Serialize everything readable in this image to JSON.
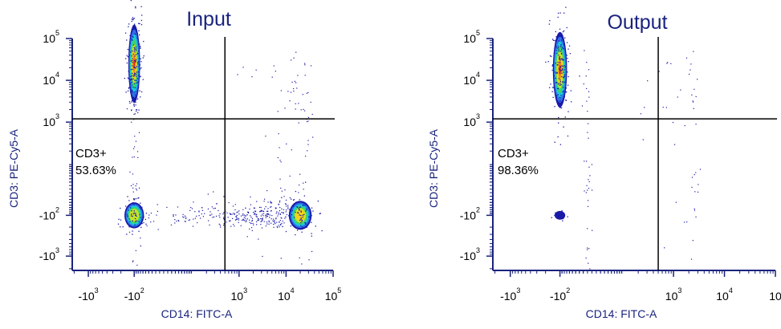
{
  "palette": {
    "title_color": "#1a237e",
    "axis_label_color": "#1a237e",
    "axis_color": "#1a237e",
    "gate_color": "#000000",
    "density_colors": [
      "#1a1aa8",
      "#2f6fe8",
      "#18c9d8",
      "#3ed36a",
      "#c6e326",
      "#f7d216",
      "#f5861e",
      "#e32b15"
    ]
  },
  "chart_data": [
    {
      "type": "scatter",
      "title": "Input",
      "xlabel": "CD14: FITC-A",
      "ylabel": "CD3: PE-Cy5-A",
      "x_scale": "biexponential",
      "y_scale": "biexponential",
      "x_ticks": [
        {
          "base": "-10",
          "exp": "3"
        },
        {
          "base": "-10",
          "exp": "2"
        },
        {
          "base": "10",
          "exp": "3"
        },
        {
          "base": "10",
          "exp": "4"
        },
        {
          "base": "10",
          "exp": "5"
        }
      ],
      "y_ticks": [
        {
          "base": "10",
          "exp": "5"
        },
        {
          "base": "10",
          "exp": "4"
        },
        {
          "base": "10",
          "exp": "3"
        },
        {
          "base": "-10",
          "exp": "2"
        },
        {
          "base": "-10",
          "exp": "3"
        }
      ],
      "gate": {
        "label": "CD3+",
        "value": "53.63%",
        "x_threshold": 500,
        "y_threshold": 1200
      },
      "populations": [
        {
          "name": "CD3+ CD14-",
          "x": -100,
          "y": 25000,
          "relative_density": 1.0
        },
        {
          "name": "CD3- CD14-",
          "x": -100,
          "y": -100,
          "relative_density": 0.6
        },
        {
          "name": "CD3- CD14+",
          "x": 20000,
          "y": -100,
          "relative_density": 0.8
        }
      ]
    },
    {
      "type": "scatter",
      "title": "Output",
      "xlabel": "CD14: FITC-A",
      "ylabel": "CD3: PE-Cy5-A",
      "x_scale": "biexponential",
      "y_scale": "biexponential",
      "x_ticks": [
        {
          "base": "-10",
          "exp": "3"
        },
        {
          "base": "-10",
          "exp": "2"
        },
        {
          "base": "10",
          "exp": "3"
        },
        {
          "base": "10",
          "exp": "4"
        },
        {
          "base": "10",
          "exp": ""
        }
      ],
      "y_ticks": [
        {
          "base": "10",
          "exp": "5"
        },
        {
          "base": "10",
          "exp": "4"
        },
        {
          "base": "10",
          "exp": "3"
        },
        {
          "base": "-10",
          "exp": "2"
        },
        {
          "base": "-10",
          "exp": "3"
        }
      ],
      "gate": {
        "label": "CD3+",
        "value": "98.36%",
        "x_threshold": 500,
        "y_threshold": 1200
      },
      "populations": [
        {
          "name": "CD3+ CD14-",
          "x": -100,
          "y": 18000,
          "relative_density": 1.0
        },
        {
          "name": "CD3- CD14-",
          "x": -100,
          "y": -100,
          "relative_density": 0.05
        }
      ]
    }
  ]
}
